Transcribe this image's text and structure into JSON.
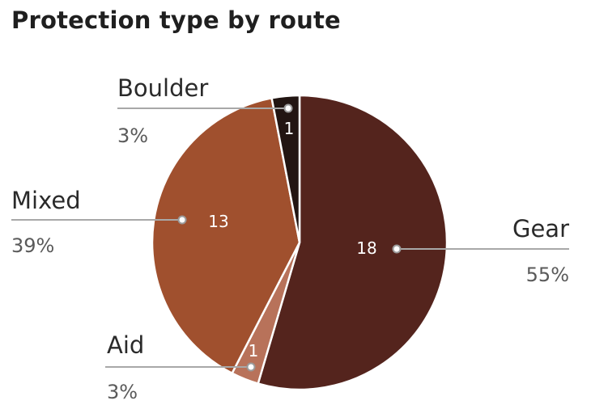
{
  "title": "Protection type by route",
  "chart_data": {
    "type": "pie",
    "title": "Protection type by route",
    "start_angle_deg": 0,
    "direction": "clockwise",
    "slices": [
      {
        "label": "Gear",
        "value": 18,
        "value_label": "18",
        "percent_label": "55%",
        "color": "#54241d"
      },
      {
        "label": "Aid",
        "value": 1,
        "value_label": "1",
        "percent_label": "3%",
        "color": "#b8725a"
      },
      {
        "label": "Mixed",
        "value": 13,
        "value_label": "13",
        "percent_label": "39%",
        "color": "#a0502e"
      },
      {
        "label": "Boulder",
        "value": 1,
        "value_label": "1",
        "percent_label": "3%",
        "color": "#221512"
      }
    ]
  }
}
